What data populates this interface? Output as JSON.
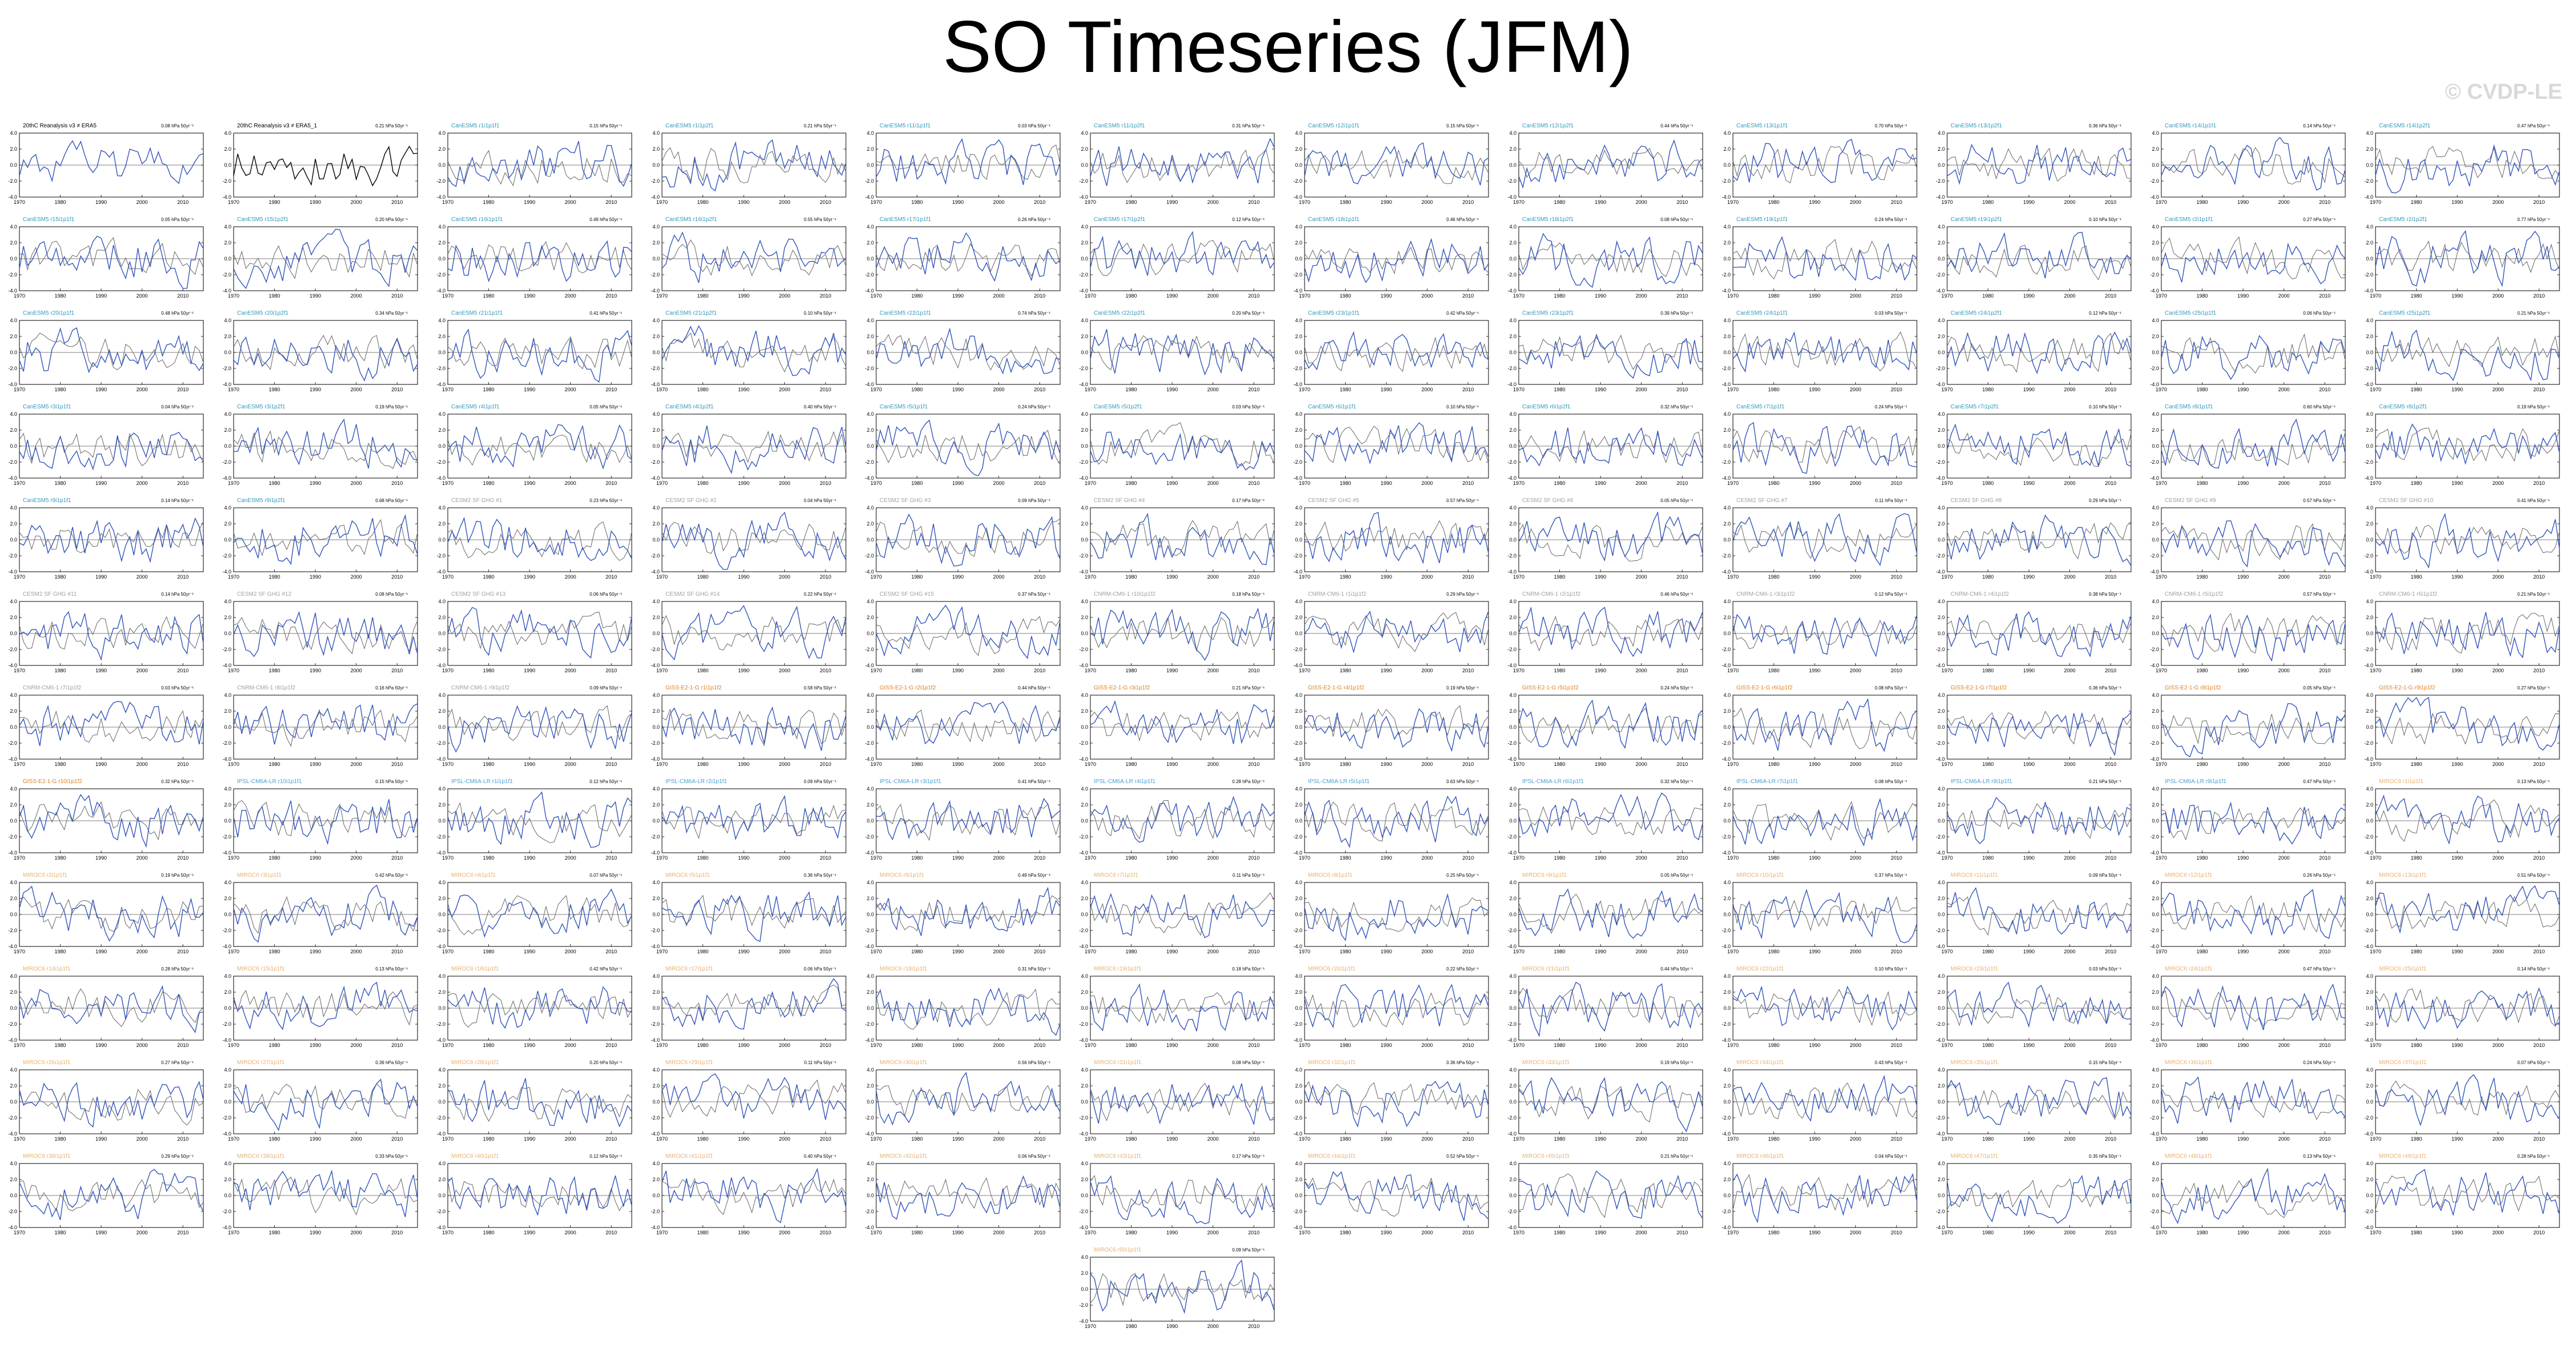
{
  "page": {
    "title": "SO Timeseries (JFM)",
    "watermark": "© CVDP-LE"
  },
  "chart_data": {
    "type": "line",
    "panel_type": "line",
    "xlim": [
      1970,
      2015
    ],
    "x_ticks": [
      "1970",
      "1980",
      "1990",
      "2000",
      "2010"
    ],
    "ylim": [
      -4.0,
      4.0
    ],
    "y_ticks": [
      "4.0",
      "2.0",
      "0.0",
      "-2.0",
      "-4.0"
    ],
    "trend_unit": "hPa 50yr⁻¹",
    "colors": {
      "observation_line": "#000000",
      "simulation_line": "#3355bb",
      "cesm2_reference_line": "#666666",
      "title_obs": "#000000",
      "title_canesm5": "#3399bb",
      "title_cesm2": "#a0a0a0",
      "title_cnrm": "#a0a0a0",
      "title_giss": "#e08020",
      "title_ipsl": "#4aa0d0",
      "title_miroc": "#e8b070"
    },
    "panels": [
      {
        "title": "20thC Reanalysis v3 ≠ ERA5",
        "group": "obs",
        "trend": "0.08"
      },
      {
        "title": "20thC Reanalysis v3 ≠ ERA5_1",
        "group": "obs",
        "trend": "0.21"
      },
      {
        "title": "CanESM5 r1i1p1f1",
        "group": "canesm5",
        "trend": "0.15"
      },
      {
        "title": "CanESM5 r1i1p2f1",
        "group": "canesm5",
        "trend": "0.21"
      },
      {
        "title": "CanESM5 r11i1p1f1",
        "group": "canesm5",
        "trend": "0.03"
      },
      {
        "title": "CanESM5 r11i1p2f1",
        "group": "canesm5",
        "trend": "0.31"
      },
      {
        "title": "CanESM5 r12i1p1f1",
        "group": "canesm5",
        "trend": "0.15"
      },
      {
        "title": "CanESM5 r12i1p2f1",
        "group": "canesm5",
        "trend": "0.44"
      },
      {
        "title": "CanESM5 r13i1p1f1",
        "group": "canesm5",
        "trend": "0.70"
      },
      {
        "title": "CanESM5 r13i1p2f1",
        "group": "canesm5",
        "trend": "0.36"
      },
      {
        "title": "CanESM5 r14i1p1f1",
        "group": "canesm5",
        "trend": "0.14"
      },
      {
        "title": "CanESM5 r14i1p2f1",
        "group": "canesm5",
        "trend": "0.47"
      },
      {
        "title": "CanESM5 r15i1p1f1",
        "group": "canesm5",
        "trend": "0.05"
      },
      {
        "title": "CanESM5 r15i1p2f1",
        "group": "canesm5",
        "trend": "0.20"
      },
      {
        "title": "CanESM5 r16i1p1f1",
        "group": "canesm5",
        "trend": "0.49"
      },
      {
        "title": "CanESM5 r16i1p2f1",
        "group": "canesm5",
        "trend": "0.55"
      },
      {
        "title": "CanESM5 r17i1p1f1",
        "group": "canesm5",
        "trend": "0.26"
      },
      {
        "title": "CanESM5 r17i1p2f1",
        "group": "canesm5",
        "trend": "0.12"
      },
      {
        "title": "CanESM5 r18i1p1f1",
        "group": "canesm5",
        "trend": "0.46"
      },
      {
        "title": "CanESM5 r18i1p2f1",
        "group": "canesm5",
        "trend": "0.08"
      },
      {
        "title": "CanESM5 r19i1p1f1",
        "group": "canesm5",
        "trend": "0.24"
      },
      {
        "title": "CanESM5 r19i1p2f1",
        "group": "canesm5",
        "trend": "0.10"
      },
      {
        "title": "CanESM5 r2i1p1f1",
        "group": "canesm5",
        "trend": "0.27"
      },
      {
        "title": "CanESM5 r2i1p2f1",
        "group": "canesm5",
        "trend": "0.77"
      },
      {
        "title": "CanESM5 r20i1p1f1",
        "group": "canesm5",
        "trend": "0.48"
      },
      {
        "title": "CanESM5 r20i1p2f1",
        "group": "canesm5",
        "trend": "0.34"
      },
      {
        "title": "CanESM5 r21i1p1f1",
        "group": "canesm5",
        "trend": "0.41"
      },
      {
        "title": "CanESM5 r21i1p2f1",
        "group": "canesm5",
        "trend": "0.10"
      },
      {
        "title": "CanESM5 r22i1p1f1",
        "group": "canesm5",
        "trend": "0.74"
      },
      {
        "title": "CanESM5 r22i1p2f1",
        "group": "canesm5",
        "trend": "0.20"
      },
      {
        "title": "CanESM5 r23i1p1f1",
        "group": "canesm5",
        "trend": "0.42"
      },
      {
        "title": "CanESM5 r23i1p2f1",
        "group": "canesm5",
        "trend": "0.39"
      },
      {
        "title": "CanESM5 r24i1p1f1",
        "group": "canesm5",
        "trend": "0.03"
      },
      {
        "title": "CanESM5 r24i1p2f1",
        "group": "canesm5",
        "trend": "0.12"
      },
      {
        "title": "CanESM5 r25i1p1f1",
        "group": "canesm5",
        "trend": "0.06"
      },
      {
        "title": "CanESM5 r25i1p2f1",
        "group": "canesm5",
        "trend": "0.21"
      },
      {
        "title": "CanESM5 r3i1p1f1",
        "group": "canesm5",
        "trend": "0.04"
      },
      {
        "title": "CanESM5 r3i1p2f1",
        "group": "canesm5",
        "trend": "0.19"
      },
      {
        "title": "CanESM5 r4i1p1f1",
        "group": "canesm5",
        "trend": "0.05"
      },
      {
        "title": "CanESM5 r4i1p2f1",
        "group": "canesm5",
        "trend": "0.40"
      },
      {
        "title": "CanESM5 r5i1p1f1",
        "group": "canesm5",
        "trend": "0.24"
      },
      {
        "title": "CanESM5 r5i1p2f1",
        "group": "canesm5",
        "trend": "0.03"
      },
      {
        "title": "CanESM5 r6i1p1f1",
        "group": "canesm5",
        "trend": "0.10"
      },
      {
        "title": "CanESM5 r6i1p2f1",
        "group": "canesm5",
        "trend": "0.32"
      },
      {
        "title": "CanESM5 r7i1p1f1",
        "group": "canesm5",
        "trend": "0.24"
      },
      {
        "title": "CanESM5 r7i1p2f1",
        "group": "canesm5",
        "trend": "0.10"
      },
      {
        "title": "CanESM5 r8i1p1f1",
        "group": "canesm5",
        "trend": "0.60"
      },
      {
        "title": "CanESM5 r8i1p2f1",
        "group": "canesm5",
        "trend": "0.19"
      },
      {
        "title": "CanESM5 r9i1p1f1",
        "group": "canesm5",
        "trend": "0.14"
      },
      {
        "title": "CanESM5 r9i1p2f1",
        "group": "canesm5",
        "trend": "0.68"
      },
      {
        "title": "CESM2 SF GHG #1",
        "group": "cesm2",
        "trend": "0.23"
      },
      {
        "title": "CESM2 SF GHG #2",
        "group": "cesm2",
        "trend": "0.04"
      },
      {
        "title": "CESM2 SF GHG #3",
        "group": "cesm2",
        "trend": "0.09"
      },
      {
        "title": "CESM2 SF GHG #4",
        "group": "cesm2",
        "trend": "0.17"
      },
      {
        "title": "CESM2 SF GHG #5",
        "group": "cesm2",
        "trend": "0.57"
      },
      {
        "title": "CESM2 SF GHG #6",
        "group": "cesm2",
        "trend": "0.05"
      },
      {
        "title": "CESM2 SF GHG #7",
        "group": "cesm2",
        "trend": "0.11"
      },
      {
        "title": "CESM2 SF GHG #8",
        "group": "cesm2",
        "trend": "0.29"
      },
      {
        "title": "CESM2 SF GHG #9",
        "group": "cesm2",
        "trend": "0.57"
      },
      {
        "title": "CESM2 SF GHG #10",
        "group": "cesm2",
        "trend": "0.41"
      },
      {
        "title": "CESM2 SF GHG #11",
        "group": "cesm2",
        "trend": "0.14"
      },
      {
        "title": "CESM2 SF GHG #12",
        "group": "cesm2",
        "trend": "0.08"
      },
      {
        "title": "CESM2 SF GHG #13",
        "group": "cesm2",
        "trend": "0.06"
      },
      {
        "title": "CESM2 SF GHG #14",
        "group": "cesm2",
        "trend": "0.22"
      },
      {
        "title": "CESM2 SF GHG #15",
        "group": "cesm2",
        "trend": "0.37"
      },
      {
        "title": "CNRM-CM6-1 r10i1p1f2",
        "group": "cnrm",
        "trend": "0.18"
      },
      {
        "title": "CNRM-CM6-1 r1i1p1f2",
        "group": "cnrm",
        "trend": "0.29"
      },
      {
        "title": "CNRM-CM6-1 r2i1p1f2",
        "group": "cnrm",
        "trend": "0.46"
      },
      {
        "title": "CNRM-CM6-1 r3i1p1f2",
        "group": "cnrm",
        "trend": "0.12"
      },
      {
        "title": "CNRM-CM6-1 r4i1p1f2",
        "group": "cnrm",
        "trend": "0.38"
      },
      {
        "title": "CNRM-CM6-1 r5i1p1f2",
        "group": "cnrm",
        "trend": "0.57"
      },
      {
        "title": "CNRM-CM6-1 r6i1p1f2",
        "group": "cnrm",
        "trend": "0.21"
      },
      {
        "title": "CNRM-CM6-1 r7i1p1f2",
        "group": "cnrm",
        "trend": "0.03"
      },
      {
        "title": "CNRM-CM6-1 r8i1p1f2",
        "group": "cnrm",
        "trend": "0.16"
      },
      {
        "title": "CNRM-CM6-1 r9i1p1f2",
        "group": "cnrm",
        "trend": "0.09"
      },
      {
        "title": "GISS-E2-1-G r1i1p1f2",
        "group": "giss",
        "trend": "0.58"
      },
      {
        "title": "GISS-E2-1-G r2i1p1f2",
        "group": "giss",
        "trend": "0.44"
      },
      {
        "title": "GISS-E2-1-G r3i1p1f2",
        "group": "giss",
        "trend": "0.21"
      },
      {
        "title": "GISS-E2-1-G r4i1p1f2",
        "group": "giss",
        "trend": "0.19"
      },
      {
        "title": "GISS-E2-1-G r5i1p1f2",
        "group": "giss",
        "trend": "0.24"
      },
      {
        "title": "GISS-E2-1-G r6i1p1f2",
        "group": "giss",
        "trend": "0.08"
      },
      {
        "title": "GISS-E2-1-G r7i1p1f2",
        "group": "giss",
        "trend": "0.36"
      },
      {
        "title": "GISS-E2-1-G r8i1p1f2",
        "group": "giss",
        "trend": "0.05"
      },
      {
        "title": "GISS-E2-1-G r9i1p1f2",
        "group": "giss",
        "trend": "0.27"
      },
      {
        "title": "GISS-E2-1-G r10i1p1f2",
        "group": "giss",
        "trend": "0.32"
      },
      {
        "title": "IPSL-CM6A-LR r10i1p1f1",
        "group": "ipsl",
        "trend": "0.15"
      },
      {
        "title": "IPSL-CM6A-LR r1i1p1f1",
        "group": "ipsl",
        "trend": "0.12"
      },
      {
        "title": "IPSL-CM6A-LR r2i1p1f1",
        "group": "ipsl",
        "trend": "0.09"
      },
      {
        "title": "IPSL-CM6A-LR r3i1p1f1",
        "group": "ipsl",
        "trend": "0.41"
      },
      {
        "title": "IPSL-CM6A-LR r4i1p1f1",
        "group": "ipsl",
        "trend": "0.28"
      },
      {
        "title": "IPSL-CM6A-LR r5i1p1f1",
        "group": "ipsl",
        "trend": "0.63"
      },
      {
        "title": "IPSL-CM6A-LR r6i1p1f1",
        "group": "ipsl",
        "trend": "0.32"
      },
      {
        "title": "IPSL-CM6A-LR r7i1p1f1",
        "group": "ipsl",
        "trend": "0.08"
      },
      {
        "title": "IPSL-CM6A-LR r8i1p1f1",
        "group": "ipsl",
        "trend": "0.21"
      },
      {
        "title": "IPSL-CM6A-LR r9i1p1f1",
        "group": "ipsl",
        "trend": "0.47"
      },
      {
        "title": "MIROC6 r1i1p1f1",
        "group": "miroc",
        "trend": "0.13"
      },
      {
        "title": "MIROC6 r2i1p1f1",
        "group": "miroc",
        "trend": "0.19"
      },
      {
        "title": "MIROC6 r3i1p1f1",
        "group": "miroc",
        "trend": "0.42"
      },
      {
        "title": "MIROC6 r4i1p1f1",
        "group": "miroc",
        "trend": "0.07"
      },
      {
        "title": "MIROC6 r5i1p1f1",
        "group": "miroc",
        "trend": "0.36"
      },
      {
        "title": "MIROC6 r6i1p1f1",
        "group": "miroc",
        "trend": "0.49"
      },
      {
        "title": "MIROC6 r7i1p1f1",
        "group": "miroc",
        "trend": "0.11"
      },
      {
        "title": "MIROC6 r8i1p1f1",
        "group": "miroc",
        "trend": "0.25"
      },
      {
        "title": "MIROC6 r9i1p1f1",
        "group": "miroc",
        "trend": "0.05"
      },
      {
        "title": "MIROC6 r10i1p1f1",
        "group": "miroc",
        "trend": "0.37"
      },
      {
        "title": "MIROC6 r11i1p1f1",
        "group": "miroc",
        "trend": "0.09"
      },
      {
        "title": "MIROC6 r12i1p1f1",
        "group": "miroc",
        "trend": "0.26"
      },
      {
        "title": "MIROC6 r13i1p1f1",
        "group": "miroc",
        "trend": "0.51"
      },
      {
        "title": "MIROC6 r14i1p1f1",
        "group": "miroc",
        "trend": "0.28"
      },
      {
        "title": "MIROC6 r15i1p1f1",
        "group": "miroc",
        "trend": "0.13"
      },
      {
        "title": "MIROC6 r16i1p1f1",
        "group": "miroc",
        "trend": "0.42"
      },
      {
        "title": "MIROC6 r17i1p1f1",
        "group": "miroc",
        "trend": "0.06"
      },
      {
        "title": "MIROC6 r18i1p1f1",
        "group": "miroc",
        "trend": "0.31"
      },
      {
        "title": "MIROC6 r19i1p1f1",
        "group": "miroc",
        "trend": "0.18"
      },
      {
        "title": "MIROC6 r20i1p1f1",
        "group": "miroc",
        "trend": "0.22"
      },
      {
        "title": "MIROC6 r21i1p1f1",
        "group": "miroc",
        "trend": "0.44"
      },
      {
        "title": "MIROC6 r22i1p1f1",
        "group": "miroc",
        "trend": "0.10"
      },
      {
        "title": "MIROC6 r23i1p1f1",
        "group": "miroc",
        "trend": "0.03"
      },
      {
        "title": "MIROC6 r24i1p1f1",
        "group": "miroc",
        "trend": "0.47"
      },
      {
        "title": "MIROC6 r25i1p1f1",
        "group": "miroc",
        "trend": "0.14"
      },
      {
        "title": "MIROC6 r26i1p1f1",
        "group": "miroc",
        "trend": "0.27"
      },
      {
        "title": "MIROC6 r27i1p1f1",
        "group": "miroc",
        "trend": "0.39"
      },
      {
        "title": "MIROC6 r28i1p1f1",
        "group": "miroc",
        "trend": "0.20"
      },
      {
        "title": "MIROC6 r29i1p1f1",
        "group": "miroc",
        "trend": "0.11"
      },
      {
        "title": "MIROC6 r30i1p1f1",
        "group": "miroc",
        "trend": "0.56"
      },
      {
        "title": "MIROC6 r31i1p1f1",
        "group": "miroc",
        "trend": "0.08"
      },
      {
        "title": "MIROC6 r32i1p1f1",
        "group": "miroc",
        "trend": "0.36"
      },
      {
        "title": "MIROC6 r33i1p1f1",
        "group": "miroc",
        "trend": "0.19"
      },
      {
        "title": "MIROC6 r34i1p1f1",
        "group": "miroc",
        "trend": "0.43"
      },
      {
        "title": "MIROC6 r35i1p1f1",
        "group": "miroc",
        "trend": "0.15"
      },
      {
        "title": "MIROC6 r36i1p1f1",
        "group": "miroc",
        "trend": "0.24"
      },
      {
        "title": "MIROC6 r37i1p1f1",
        "group": "miroc",
        "trend": "0.07"
      },
      {
        "title": "MIROC6 r38i1p1f1",
        "group": "miroc",
        "trend": "0.29"
      },
      {
        "title": "MIROC6 r39i1p1f1",
        "group": "miroc",
        "trend": "0.33"
      },
      {
        "title": "MIROC6 r40i1p1f1",
        "group": "miroc",
        "trend": "0.12"
      },
      {
        "title": "MIROC6 r41i1p1f1",
        "group": "miroc",
        "trend": "0.40"
      },
      {
        "title": "MIROC6 r42i1p1f1",
        "group": "miroc",
        "trend": "0.06"
      },
      {
        "title": "MIROC6 r43i1p1f1",
        "group": "miroc",
        "trend": "0.17"
      },
      {
        "title": "MIROC6 r44i1p1f1",
        "group": "miroc",
        "trend": "0.52"
      },
      {
        "title": "MIROC6 r45i1p1f1",
        "group": "miroc",
        "trend": "0.21"
      },
      {
        "title": "MIROC6 r46i1p1f1",
        "group": "miroc",
        "trend": "0.04"
      },
      {
        "title": "MIROC6 r47i1p1f1",
        "group": "miroc",
        "trend": "0.35"
      },
      {
        "title": "MIROC6 r48i1p1f1",
        "group": "miroc",
        "trend": "0.13"
      },
      {
        "title": "MIROC6 r49i1p1f1",
        "group": "miroc",
        "trend": "0.28"
      },
      {
        "title": "MIROC6 r50i1p1f1",
        "group": "miroc",
        "trend": "0.09"
      }
    ]
  }
}
